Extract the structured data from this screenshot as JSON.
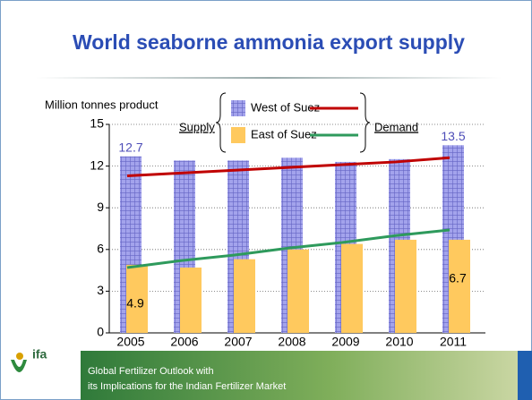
{
  "title": "World seaborne ammonia export supply",
  "chart_data": {
    "type": "bar",
    "y_label": "Million tonnes product",
    "categories": [
      "2005",
      "2006",
      "2007",
      "2008",
      "2009",
      "2010",
      "2011"
    ],
    "series": [
      {
        "name": "West of Suez",
        "color": "#8f8fe0",
        "values": [
          12.7,
          12.4,
          12.4,
          12.6,
          12.3,
          12.5,
          13.5
        ],
        "value_labels": [
          "12.7",
          null,
          null,
          null,
          null,
          null,
          "13.5"
        ],
        "label_color": "#4d4db8"
      },
      {
        "name": "East of Suez",
        "color": "#ffc95e",
        "values": [
          4.9,
          4.7,
          5.3,
          6.0,
          6.4,
          6.7,
          6.7
        ],
        "value_labels": [
          "4.9",
          null,
          null,
          null,
          null,
          null,
          "6.7"
        ],
        "label_color": "#000000"
      }
    ],
    "demand": [
      {
        "color": "#c00000",
        "values": [
          11.3,
          11.5,
          11.7,
          11.9,
          12.1,
          12.3,
          12.6
        ]
      },
      {
        "color": "#2e9a5c",
        "values": [
          4.7,
          5.2,
          5.6,
          6.1,
          6.5,
          7.0,
          7.4
        ]
      }
    ],
    "supply_label": "Supply",
    "demand_label": "Demand",
    "ylim": [
      0,
      15
    ],
    "yticks": [
      0,
      3,
      6,
      9,
      12,
      15
    ],
    "grid": true
  },
  "footer": {
    "logo": "ifa",
    "line1": "Global Fertilizer Outlook with",
    "line2": "its Implications for the Indian Fertilizer Market"
  }
}
